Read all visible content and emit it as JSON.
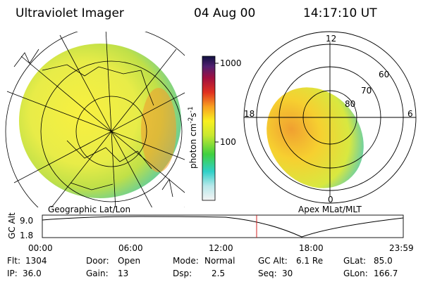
{
  "header": {
    "instrument": "Ultraviolet Imager",
    "date": "04 Aug 00",
    "time": "14:17:10 UT"
  },
  "colorbar": {
    "ticks": [
      "1000",
      "100"
    ],
    "unit": [
      "photon cm",
      "-2",
      "s",
      "-1"
    ]
  },
  "left_panel": {
    "label": "Geographic Lat/Lon"
  },
  "right_panel": {
    "label": "Apex MLat/MLT",
    "mlt_labels": [
      "12",
      "18",
      "6",
      "0"
    ],
    "mlat_labels": [
      "60",
      "70",
      "80"
    ]
  },
  "altitude": {
    "label": "GC Alt",
    "ticks": [
      "9.0",
      "1.8"
    ],
    "times": [
      "00:00",
      "06:00",
      "12:00",
      "18:00",
      "23:59"
    ]
  },
  "status": {
    "rows": [
      [
        [
          "Flt:",
          "1304"
        ],
        [
          "Door:",
          "Open"
        ],
        [
          "Mode:",
          "Normal"
        ],
        [
          "GC Alt:",
          "6.1 Re"
        ],
        [
          "GLat:",
          "85.0"
        ]
      ],
      [
        [
          "IP:",
          "36.0"
        ],
        [
          "Gain:",
          "13"
        ],
        [
          "Dsp:",
          "2.5"
        ],
        [
          "Seq:",
          "30"
        ],
        [
          "GLon:",
          "166.7"
        ]
      ]
    ]
  }
}
